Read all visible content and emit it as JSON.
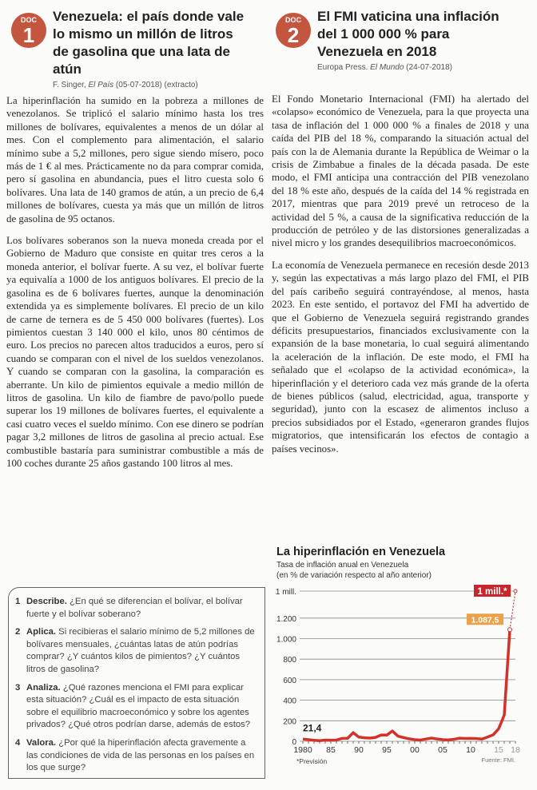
{
  "doc1": {
    "badge_label": "DOC",
    "badge_number": "1",
    "title": "Venezuela: el país donde vale lo mismo un millón de litros de gasolina que una lata de atún",
    "source_author": "F. Singer, ",
    "source_publication": "El País",
    "source_rest": " (05-07-2018) (extracto)",
    "paragraphs": [
      "La hiperinflación ha sumido en la pobreza a millones de venezolanos. Se triplicó el salario mínimo hasta los tres millones de bolívares, equivalentes a menos de un dólar al mes. Con el complemento para alimentación, el salario mínimo sube a 5,2 millones, pero sigue siendo mísero, poco más de 1 € al mes. Prácticamente no da para comprar comida, pero sí gasolina en abundancia, pues el litro cuesta solo 6 bolívares. Una lata de 140 gramos de atún, a un precio de 6,4 millones de bolívares, cuesta ya más que un millón de litros de gasolina de 95 octanos.",
      "Los bolívares soberanos son la nueva moneda creada por el Gobierno de Maduro que consiste en quitar tres ceros a la moneda anterior, el bolívar fuerte. A su vez, el bolívar fuerte ya equivalía a 1000 de los antiguos bolívares. El precio de la gasolina es de 6 bolívares fuertes, aunque la denominación extendida ya es simplemente bolívares. El precio de un kilo de carne de ternera es de 5 450 000 bolívares (fuertes). Los pimientos cuestan 3 140 000 el kilo, unos 80 céntimos de euro. Los precios no parecen altos traducidos a euros, pero sí cuando se comparan con el nivel de los sueldos venezolanos. Y cuando se comparan con la gasolina, la comparación es aberrante. Un kilo de pimientos equivale a medio millón de litros de gasolina. Un kilo de fiambre de pavo/pollo puede superar los 19 millones de bolívares fuertes, el equivalente a casi cuatro veces el sueldo mínimo. Con ese dinero se podrían pagar 3,2 millones de litros de gasolina al precio actual. Ese combustible bastaría para suministrar combustible a más de 100 coches durante 25 años gastando 100 litros al mes."
    ]
  },
  "doc2": {
    "badge_label": "DOC",
    "badge_number": "2",
    "title": "El FMI vaticina una inflación del 1 000 000 % para Venezuela en 2018",
    "source_author": "Europa Press. ",
    "source_publication": "El Mundo",
    "source_rest": " (24-07-2018)",
    "paragraphs": [
      "El Fondo Monetario Internacional (FMI) ha alertado del «colapso» económico de Venezuela, para la que proyecta una tasa de inflación del 1 000 000 % a finales de 2018 y una caída del PIB del 18 %, comparando la situación actual del país con la de Alemania durante la República de Weimar o la crisis de Zimbabue a finales de la década pasada. De este modo, el FMI anticipa una contracción del PIB venezolano del 18 % este año, después de la caída del 14 % registrada en 2017, mientras que para 2019 prevé un retroceso de la actividad del 5 %, a causa de la significativa reducción de la producción de petróleo y de las distorsiones generalizadas a nivel micro y los grandes desequilibrios macroeconómicos.",
      "La economía de Venezuela permanece en recesión desde 2013 y, según las expectativas a más largo plazo del FMI, el PIB del país caribeño seguirá contrayéndose, al menos, hasta 2023. En este sentido, el portavoz del FMI ha advertido de que el Gobierno de Venezuela seguirá registrando grandes déficits presupuestarios, financiados exclusivamente con la expansión de la base monetaria, lo cual seguirá alimentando la aceleración de la inflación. De este modo, el FMI ha señalado que el «colapso de la actividad económica», la hiperinflación y el deterioro cada vez más grande de la oferta de bienes públicos (salud, electricidad, agua, transporte y seguridad), junto con la escasez de alimentos incluso a precios subsidiados por el Estado, «generaron grandes flujos migratorios, que intensificarán los efectos de contagio a países vecinos»."
    ]
  },
  "questions": [
    {
      "number": "1",
      "verb": "Describe.",
      "text": " ¿En qué se diferencian el bolívar, el bolívar fuerte y el bolívar soberano?"
    },
    {
      "number": "2",
      "verb": "Aplica.",
      "text": " Si recibieras el salario mínimo de 5,2 millones de bolívares mensuales, ¿cuántas latas de atún podrías comprar? ¿Y cuántos kilos de pimientos? ¿Y cuántos litros de gasolina?"
    },
    {
      "number": "3",
      "verb": "Analiza.",
      "text": " ¿Qué razones menciona el FMI para explicar esta situación? ¿Cuál es el impacto de esta situación sobre el equilibrio macroeconómico y sobre los agentes privados? ¿Qué otros podrían darse, además de estos?"
    },
    {
      "number": "4",
      "verb": "Valora.",
      "text": " ¿Por qué la hiperinflación afecta gravemente a las condiciones de vida de las personas en los países en los que surge?"
    }
  ],
  "chart_data": {
    "type": "line",
    "title": "La hiperinflación en Venezuela",
    "subtitle_line1": "Tasa de inflación anual en Venezuela",
    "subtitle_line2": "(en % de variación respecto al año anterior)",
    "x": [
      1980,
      1981,
      1982,
      1983,
      1984,
      1985,
      1986,
      1987,
      1988,
      1989,
      1990,
      1991,
      1992,
      1993,
      1994,
      1995,
      1996,
      1997,
      1998,
      1999,
      2000,
      2001,
      2002,
      2003,
      2004,
      2005,
      2006,
      2007,
      2008,
      2009,
      2010,
      2011,
      2012,
      2013,
      2014,
      2015,
      2016,
      2017
    ],
    "values": [
      21.4,
      16,
      10,
      6,
      12,
      11,
      12,
      28,
      29,
      84,
      41,
      34,
      31,
      38,
      61,
      60,
      100,
      50,
      36,
      24,
      16,
      12,
      22,
      31,
      22,
      16,
      14,
      19,
      30,
      27,
      28,
      26,
      21,
      41,
      62,
      122,
      255,
      1087.5
    ],
    "forecast": {
      "x": 2018,
      "value": 1000000,
      "label": "1 mill.*"
    },
    "yticks": [
      "0",
      "200",
      "400",
      "600",
      "800",
      "1.000",
      "1.200",
      "1 mill."
    ],
    "ytick_values": [
      0,
      200,
      400,
      600,
      800,
      1000,
      1200,
      1000000
    ],
    "xticks": [
      "1980",
      "85",
      "90",
      "95",
      "00",
      "05",
      "10",
      "15",
      "18"
    ],
    "xtick_values": [
      1980,
      1985,
      1990,
      1995,
      2000,
      2005,
      2010,
      2015,
      2018
    ],
    "ylim": [
      0,
      1200
    ],
    "axis_break": true,
    "grid": true,
    "annotations": {
      "first": "21,4",
      "last": "1.087,5"
    },
    "footnote": "*Previsión",
    "source": "Fuente: FMI.",
    "colors": {
      "line": "#d2322a",
      "forecast_label": "#c8262a",
      "last_label": "#e8a24a"
    }
  }
}
